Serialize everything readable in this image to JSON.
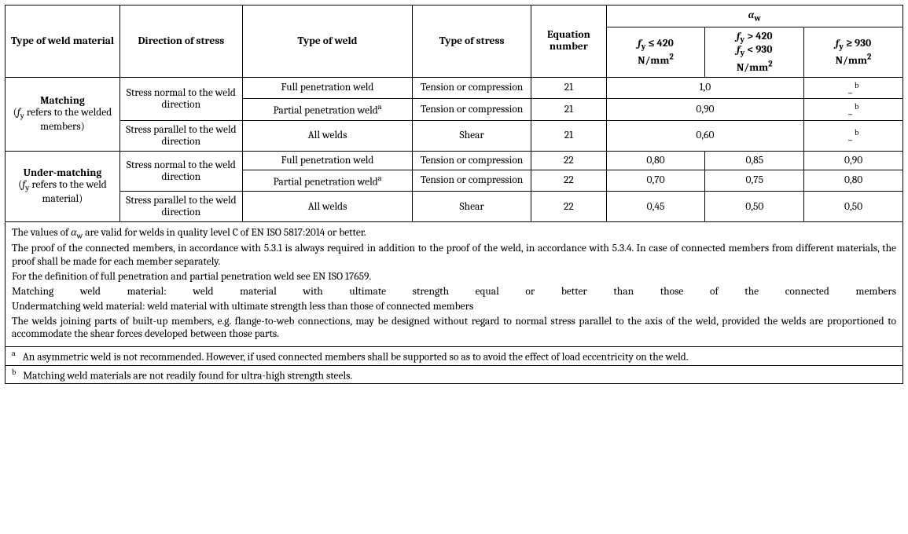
{
  "head": {
    "h_material": "Type of weld material",
    "h_direction": "Direction of stress",
    "h_weld": "Type of weld",
    "h_stress": "Type of stress",
    "h_eq": "Equation number",
    "alpha_html": "<span class='it'>α</span><span class='sub'>w</span>",
    "col6_html": "<span class='it'>f</span><span class='sub'>y</span> ≤ 420<br><b>N/mm<span class='sup'>2</span></b>",
    "col7_html": "<span class='it'>f</span><span class='sub'>y</span> > 420<br><span class='it'>f</span><span class='sub'>y</span> < 930<br><b>N/mm<span class='sup'>2</span></b>",
    "col8_html": "<span class='it'>f</span><span class='sub'>y</span> ≥ 930<br><b>N/mm<span class='sup'>2</span></b>"
  },
  "rowgroups": {
    "matching_html": "<b>Matching</b><br>(<span class='it'>f</span><span class='sub'>y</span> refers to the welded members)",
    "under_html": "<b>Under-matching</b><br>(<span class='it'>f</span><span class='sub'>y</span> refers to the weld material)"
  },
  "dir": {
    "normal": "Stress normal to the weld direction",
    "parallel": "Stress parallel to the weld direction"
  },
  "weld": {
    "full": "Full penetration weld",
    "partial_html": "Partial penetration weld<span class='fn-sup'>a</span>",
    "all": "All welds"
  },
  "stress": {
    "tc": "Tension or compression",
    "shear": "Shear"
  },
  "rows": {
    "r1": {
      "eq": "21",
      "m12": "1,0",
      "v3_html": "_ <span class='fn-sup'>b</span>"
    },
    "r2": {
      "eq": "21",
      "m12": "0,90",
      "v3_html": "_ <span class='fn-sup'>b</span>"
    },
    "r3": {
      "eq": "21",
      "m12": "0,60",
      "v3_html": "_ <span class='fn-sup'>b</span>"
    },
    "r4": {
      "eq": "22",
      "v1": "0,80",
      "v2": "0,85",
      "v3": "0,90"
    },
    "r5": {
      "eq": "22",
      "v1": "0,70",
      "v2": "0,75",
      "v3": "0,80"
    },
    "r6": {
      "eq": "22",
      "v1": "0,45",
      "v2": "0,50",
      "v3": "0,50"
    }
  },
  "notes": {
    "p1_html": "The values of <span class='it'>α</span><span class='sub'>w</span> are valid for welds in quality level C of EN ISO 5817:2014 or better.",
    "p2": "The proof of the connected members, in accordance with 5.3.1 is always required in addition to the proof of the weld, in accordance with 5.3.4. In case of connected members from different materials, the proof shall be made for each member separately.",
    "p3": "For the definition of full penetration and partial penetration weld see EN ISO 17659.",
    "p4": "Matching weld material: weld material with ultimate strength equal or better than those of the connected members",
    "p5": "Undermatching weld material: weld material with ultimate strength less than those of connected members",
    "p6": "The welds joining parts of built-up members, e.g. flange-to-web connections, may be designed without regard to normal stress parallel to the axis of the weld, provided the welds are proportioned to accommodate the shear forces developed between those parts."
  },
  "footnotes": {
    "a_label": "a",
    "a_text": "An asymmetric weld is not recommended. However, if used connected members shall be supported so as to avoid the effect of load eccentricity on the weld.",
    "b_label": "b",
    "b_text": "Matching weld materials are not readily found for ultra-high strength steels."
  }
}
